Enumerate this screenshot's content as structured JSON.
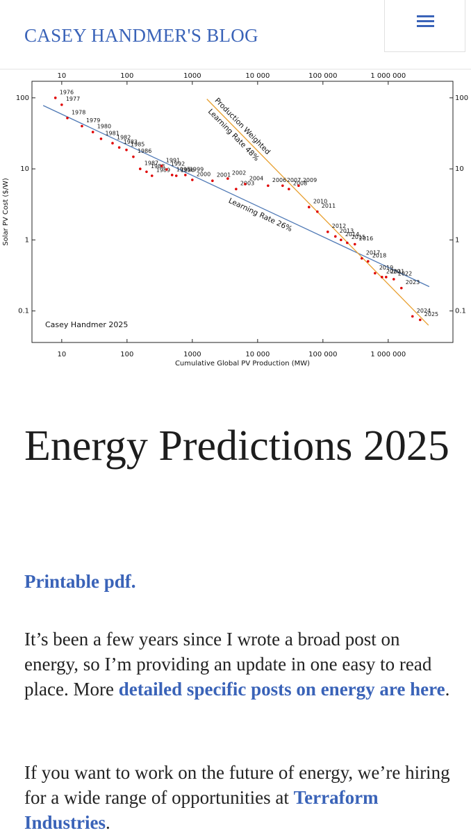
{
  "header": {
    "title": "CASEY HANDMER'S BLOG"
  },
  "chart_data": {
    "type": "scatter",
    "x_label": "Cumulative Global PV Production (MW)",
    "y_label": "Solar PV Cost ($/W)",
    "annotation": "Casey Handmer 2025",
    "xscale": "log",
    "yscale": "log",
    "xlim": [
      3.5,
      9800000
    ],
    "ylim": [
      0.036,
      171
    ],
    "xticks": [
      10,
      100,
      1000,
      {
        "value": 10000,
        "label": "10 000"
      },
      {
        "value": 100000,
        "label": "100 000"
      },
      {
        "value": 1000000,
        "label": "1 000 000"
      }
    ],
    "yticks": [
      100,
      10,
      1,
      0.1
    ],
    "series": [
      {
        "color": "#e00000",
        "point_labels": [
          "1976",
          "1977",
          "1978",
          "1979",
          "1980",
          "1981",
          "1982",
          "1983",
          "1985",
          "1986",
          "1987",
          "1988",
          "1989",
          "1991",
          "1992",
          "1995",
          "1996",
          "1999",
          "2000",
          "2001",
          "2002",
          "2003",
          "2004",
          "2006",
          "2007",
          "2008",
          "2009",
          "2010",
          "2011",
          "2012",
          "2013",
          "2014",
          "2015",
          "2016",
          "2017",
          "2018",
          "2019",
          "2020",
          "2021",
          "2022",
          "2023",
          "2024",
          "2025"
        ],
        "x": [
          8.0,
          10,
          12.2,
          20.4,
          30,
          40,
          60,
          76,
          98,
          125,
          159,
          199,
          241,
          340,
          404,
          490,
          568,
          783,
          1000,
          2035,
          3490,
          4680,
          6440,
          14450,
          24150,
          30130,
          42450,
          61240,
          82200,
          118600,
          155300,
          189100,
          235600,
          308400,
          394100,
          491300,
          628000,
          802000,
          929000,
          1216000,
          1592000,
          2355000,
          3083000
        ],
        "values": [
          100,
          80,
          52,
          40,
          33,
          26.5,
          23,
          20,
          18.5,
          14.8,
          10,
          9.1,
          8,
          11,
          9.8,
          8.2,
          8,
          8.2,
          7,
          6.8,
          7.3,
          5.2,
          6.1,
          5.8,
          5.8,
          5.2,
          5.8,
          2.9,
          2.5,
          1.3,
          1.12,
          1,
          0.91,
          0.87,
          0.55,
          0.5,
          0.34,
          0.3,
          0.3,
          0.28,
          0.21,
          0.084,
          0.075
        ]
      }
    ],
    "trend_lines": [
      {
        "label_lines": [
          "Learning Rate 26%"
        ],
        "color": "#4f79b5",
        "x": [
          5.2,
          4250000
        ],
        "values": [
          78,
          0.22
        ]
      },
      {
        "label_lines": [
          "Production Weighted",
          "Learning Rate 48%"
        ],
        "color": "#e8a030",
        "x": [
          1670,
          4140000
        ],
        "values": [
          96,
          0.063
        ]
      }
    ]
  },
  "article": {
    "title": "Energy Predictions 2025",
    "pdf_link": "Printable pdf.",
    "paragraphs": [
      [
        "It’s been a few years since I wrote a broad post on energy, so I’m providing an update in one easy to read place. More ",
        "detailed specific posts on energy are here",
        "."
      ],
      [
        "If you want to work on the future of energy, we’re hiring for a wide range of opportunities at ",
        "Terraform Industries",
        "."
      ]
    ]
  }
}
